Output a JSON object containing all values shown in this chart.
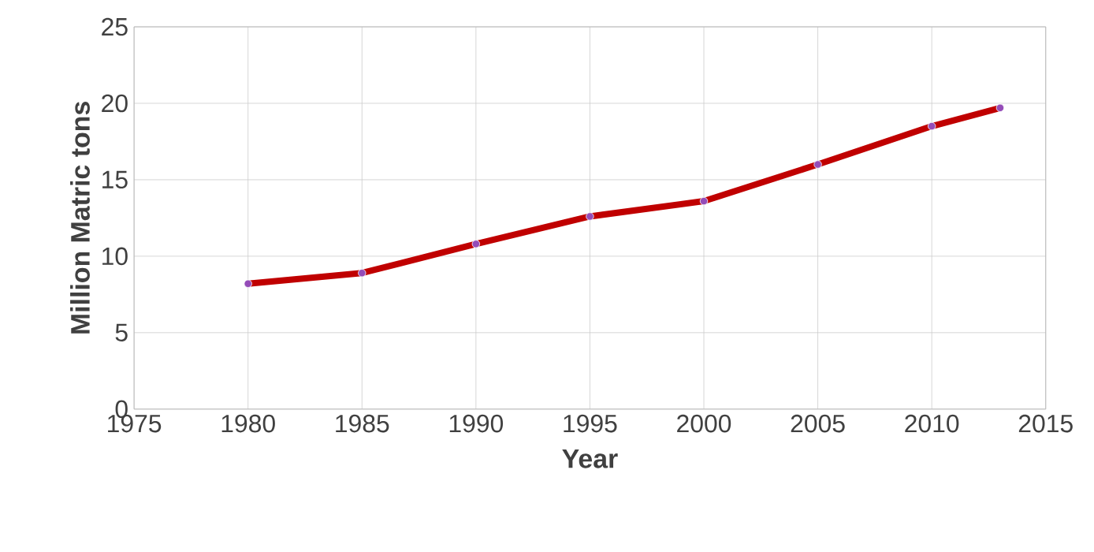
{
  "chart_data": {
    "type": "line",
    "xlabel": "Year",
    "ylabel": "Million Matric tons",
    "x": [
      1980,
      1985,
      1990,
      1995,
      2000,
      2005,
      2010,
      2013
    ],
    "series": [
      {
        "color": "#c00000",
        "values": [
          8.2,
          8.9,
          10.8,
          12.6,
          13.6,
          16.0,
          18.5,
          19.7
        ]
      }
    ],
    "xlim": [
      1975,
      2015
    ],
    "xticks": [
      1975,
      1980,
      1985,
      1990,
      1995,
      2000,
      2005,
      2010,
      2015
    ],
    "ylim": [
      0,
      25
    ],
    "yticks": [
      0,
      5,
      10,
      15,
      20,
      25
    ],
    "grid": true,
    "marker": "circle",
    "line_style": "solid"
  }
}
